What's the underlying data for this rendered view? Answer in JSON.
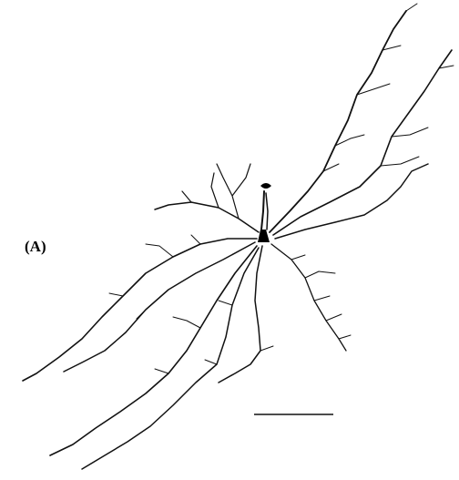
{
  "figure": {
    "panel_label": "(A)"
  }
}
